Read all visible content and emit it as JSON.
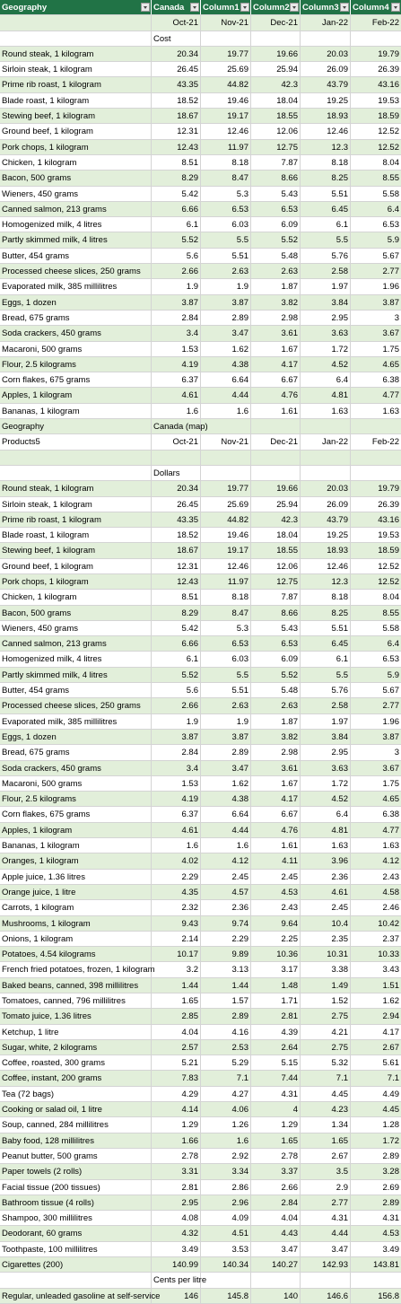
{
  "header": {
    "columns": [
      "Geography",
      "Canada",
      "Column1",
      "Column2",
      "Column3",
      "Column4"
    ]
  },
  "table1": {
    "periods": [
      "Oct-21",
      "Nov-21",
      "Dec-21",
      "Jan-22",
      "Feb-22"
    ],
    "unit_label": "Cost",
    "rows": [
      [
        "Round steak, 1 kilogram",
        "20.34",
        "19.77",
        "19.66",
        "20.03",
        "19.79"
      ],
      [
        "Sirloin steak, 1 kilogram",
        "26.45",
        "25.69",
        "25.94",
        "26.09",
        "26.39"
      ],
      [
        "Prime rib roast, 1 kilogram",
        "43.35",
        "44.82",
        "42.3",
        "43.79",
        "43.16"
      ],
      [
        "Blade roast, 1 kilogram",
        "18.52",
        "19.46",
        "18.04",
        "19.25",
        "19.53"
      ],
      [
        "Stewing beef, 1 kilogram",
        "18.67",
        "19.17",
        "18.55",
        "18.93",
        "18.59"
      ],
      [
        "Ground beef, 1 kilogram",
        "12.31",
        "12.46",
        "12.06",
        "12.46",
        "12.52"
      ],
      [
        "Pork chops, 1 kilogram",
        "12.43",
        "11.97",
        "12.75",
        "12.3",
        "12.52"
      ],
      [
        "Chicken, 1 kilogram",
        "8.51",
        "8.18",
        "7.87",
        "8.18",
        "8.04"
      ],
      [
        "Bacon, 500 grams",
        "8.29",
        "8.47",
        "8.66",
        "8.25",
        "8.55"
      ],
      [
        "Wieners, 450 grams",
        "5.42",
        "5.3",
        "5.43",
        "5.51",
        "5.58"
      ],
      [
        "Canned salmon, 213 grams",
        "6.66",
        "6.53",
        "6.53",
        "6.45",
        "6.4"
      ],
      [
        "Homogenized milk, 4 litres",
        "6.1",
        "6.03",
        "6.09",
        "6.1",
        "6.53"
      ],
      [
        "Partly skimmed milk, 4 litres",
        "5.52",
        "5.5",
        "5.52",
        "5.5",
        "5.9"
      ],
      [
        "Butter, 454 grams",
        "5.6",
        "5.51",
        "5.48",
        "5.76",
        "5.67"
      ],
      [
        "Processed cheese slices, 250 grams",
        "2.66",
        "2.63",
        "2.63",
        "2.58",
        "2.77"
      ],
      [
        "Evaporated milk, 385 millilitres",
        "1.9",
        "1.9",
        "1.87",
        "1.97",
        "1.96"
      ],
      [
        "Eggs, 1 dozen",
        "3.87",
        "3.87",
        "3.82",
        "3.84",
        "3.87"
      ],
      [
        "Bread, 675 grams",
        "2.84",
        "2.89",
        "2.98",
        "2.95",
        "3"
      ],
      [
        "Soda crackers, 450 grams",
        "3.4",
        "3.47",
        "3.61",
        "3.63",
        "3.67"
      ],
      [
        "Macaroni, 500 grams",
        "1.53",
        "1.62",
        "1.67",
        "1.72",
        "1.75"
      ],
      [
        "Flour, 2.5 kilograms",
        "4.19",
        "4.38",
        "4.17",
        "4.52",
        "4.65"
      ],
      [
        "Corn flakes, 675 grams",
        "6.37",
        "6.64",
        "6.67",
        "6.4",
        "6.38"
      ],
      [
        "Apples, 1 kilogram",
        "4.61",
        "4.44",
        "4.76",
        "4.81",
        "4.77"
      ],
      [
        "Bananas, 1 kilogram",
        "1.6",
        "1.6",
        "1.61",
        "1.63",
        "1.63"
      ]
    ]
  },
  "table2": {
    "geo_label": "Geography",
    "geo_value": "Canada (map)",
    "products_label": "Products5",
    "periods": [
      "Oct-21",
      "Nov-21",
      "Dec-21",
      "Jan-22",
      "Feb-22"
    ],
    "unit_label": "Dollars",
    "rows": [
      [
        "Round steak, 1 kilogram",
        "20.34",
        "19.77",
        "19.66",
        "20.03",
        "19.79"
      ],
      [
        "Sirloin steak, 1 kilogram",
        "26.45",
        "25.69",
        "25.94",
        "26.09",
        "26.39"
      ],
      [
        "Prime rib roast, 1 kilogram",
        "43.35",
        "44.82",
        "42.3",
        "43.79",
        "43.16"
      ],
      [
        "Blade roast, 1 kilogram",
        "18.52",
        "19.46",
        "18.04",
        "19.25",
        "19.53"
      ],
      [
        "Stewing beef, 1 kilogram",
        "18.67",
        "19.17",
        "18.55",
        "18.93",
        "18.59"
      ],
      [
        "Ground beef, 1 kilogram",
        "12.31",
        "12.46",
        "12.06",
        "12.46",
        "12.52"
      ],
      [
        "Pork chops, 1 kilogram",
        "12.43",
        "11.97",
        "12.75",
        "12.3",
        "12.52"
      ],
      [
        "Chicken, 1 kilogram",
        "8.51",
        "8.18",
        "7.87",
        "8.18",
        "8.04"
      ],
      [
        "Bacon, 500 grams",
        "8.29",
        "8.47",
        "8.66",
        "8.25",
        "8.55"
      ],
      [
        "Wieners, 450 grams",
        "5.42",
        "5.3",
        "5.43",
        "5.51",
        "5.58"
      ],
      [
        "Canned salmon, 213 grams",
        "6.66",
        "6.53",
        "6.53",
        "6.45",
        "6.4"
      ],
      [
        "Homogenized milk, 4 litres",
        "6.1",
        "6.03",
        "6.09",
        "6.1",
        "6.53"
      ],
      [
        "Partly skimmed milk, 4 litres",
        "5.52",
        "5.5",
        "5.52",
        "5.5",
        "5.9"
      ],
      [
        "Butter, 454 grams",
        "5.6",
        "5.51",
        "5.48",
        "5.76",
        "5.67"
      ],
      [
        "Processed cheese slices, 250 grams",
        "2.66",
        "2.63",
        "2.63",
        "2.58",
        "2.77"
      ],
      [
        "Evaporated milk, 385 millilitres",
        "1.9",
        "1.9",
        "1.87",
        "1.97",
        "1.96"
      ],
      [
        "Eggs, 1 dozen",
        "3.87",
        "3.87",
        "3.82",
        "3.84",
        "3.87"
      ],
      [
        "Bread, 675 grams",
        "2.84",
        "2.89",
        "2.98",
        "2.95",
        "3"
      ],
      [
        "Soda crackers, 450 grams",
        "3.4",
        "3.47",
        "3.61",
        "3.63",
        "3.67"
      ],
      [
        "Macaroni, 500 grams",
        "1.53",
        "1.62",
        "1.67",
        "1.72",
        "1.75"
      ],
      [
        "Flour, 2.5 kilograms",
        "4.19",
        "4.38",
        "4.17",
        "4.52",
        "4.65"
      ],
      [
        "Corn flakes, 675 grams",
        "6.37",
        "6.64",
        "6.67",
        "6.4",
        "6.38"
      ],
      [
        "Apples, 1 kilogram",
        "4.61",
        "4.44",
        "4.76",
        "4.81",
        "4.77"
      ],
      [
        "Bananas, 1 kilogram",
        "1.6",
        "1.6",
        "1.61",
        "1.63",
        "1.63"
      ],
      [
        "Oranges, 1 kilogram",
        "4.02",
        "4.12",
        "4.11",
        "3.96",
        "4.12"
      ],
      [
        "Apple juice, 1.36 litres",
        "2.29",
        "2.45",
        "2.45",
        "2.36",
        "2.43"
      ],
      [
        "Orange juice, 1 litre",
        "4.35",
        "4.57",
        "4.53",
        "4.61",
        "4.58"
      ],
      [
        "Carrots, 1 kilogram",
        "2.32",
        "2.36",
        "2.43",
        "2.45",
        "2.46"
      ],
      [
        "Mushrooms, 1 kilogram",
        "9.43",
        "9.74",
        "9.64",
        "10.4",
        "10.42"
      ],
      [
        "Onions, 1 kilogram",
        "2.14",
        "2.29",
        "2.25",
        "2.35",
        "2.37"
      ],
      [
        "Potatoes, 4.54 kilograms",
        "10.17",
        "9.89",
        "10.36",
        "10.31",
        "10.33"
      ],
      [
        "French fried potatoes, frozen, 1 kilogram",
        "3.2",
        "3.13",
        "3.17",
        "3.38",
        "3.43"
      ],
      [
        "Baked beans, canned, 398 millilitres",
        "1.44",
        "1.44",
        "1.48",
        "1.49",
        "1.51"
      ],
      [
        "Tomatoes, canned, 796 millilitres",
        "1.65",
        "1.57",
        "1.71",
        "1.52",
        "1.62"
      ],
      [
        "Tomato juice, 1.36 litres",
        "2.85",
        "2.89",
        "2.81",
        "2.75",
        "2.94"
      ],
      [
        "Ketchup, 1 litre",
        "4.04",
        "4.16",
        "4.39",
        "4.21",
        "4.17"
      ],
      [
        "Sugar, white, 2 kilograms",
        "2.57",
        "2.53",
        "2.64",
        "2.75",
        "2.67"
      ],
      [
        "Coffee, roasted, 300 grams",
        "5.21",
        "5.29",
        "5.15",
        "5.32",
        "5.61"
      ],
      [
        "Coffee, instant, 200 grams",
        "7.83",
        "7.1",
        "7.44",
        "7.1",
        "7.1"
      ],
      [
        "Tea (72 bags)",
        "4.29",
        "4.27",
        "4.31",
        "4.45",
        "4.49"
      ],
      [
        "Cooking or salad oil, 1 litre",
        "4.14",
        "4.06",
        "4",
        "4.23",
        "4.45"
      ],
      [
        "Soup, canned, 284 millilitres",
        "1.29",
        "1.26",
        "1.29",
        "1.34",
        "1.28"
      ],
      [
        "Baby food, 128 millilitres",
        "1.66",
        "1.6",
        "1.65",
        "1.65",
        "1.72"
      ],
      [
        "Peanut butter, 500 grams",
        "2.78",
        "2.92",
        "2.78",
        "2.67",
        "2.89"
      ],
      [
        "Paper towels (2 rolls)",
        "3.31",
        "3.34",
        "3.37",
        "3.5",
        "3.28"
      ],
      [
        "Facial tissue (200 tissues)",
        "2.81",
        "2.86",
        "2.66",
        "2.9",
        "2.69"
      ],
      [
        "Bathroom tissue (4 rolls)",
        "2.95",
        "2.96",
        "2.84",
        "2.77",
        "2.89"
      ],
      [
        "Shampoo, 300 millilitres",
        "4.08",
        "4.09",
        "4.04",
        "4.31",
        "4.31"
      ],
      [
        "Deodorant, 60 grams",
        "4.32",
        "4.51",
        "4.43",
        "4.44",
        "4.53"
      ],
      [
        "Toothpaste, 100 millilitres",
        "3.49",
        "3.53",
        "3.47",
        "3.47",
        "3.49"
      ],
      [
        "Cigarettes (200)",
        "140.99",
        "140.34",
        "140.27",
        "142.93",
        "143.81"
      ]
    ],
    "unit_label_2": "Cents per litre",
    "gas_row": [
      "Regular, unleaded gasoline at self-service",
      "146",
      "145.8",
      "140",
      "146.6",
      "156.8"
    ]
  }
}
